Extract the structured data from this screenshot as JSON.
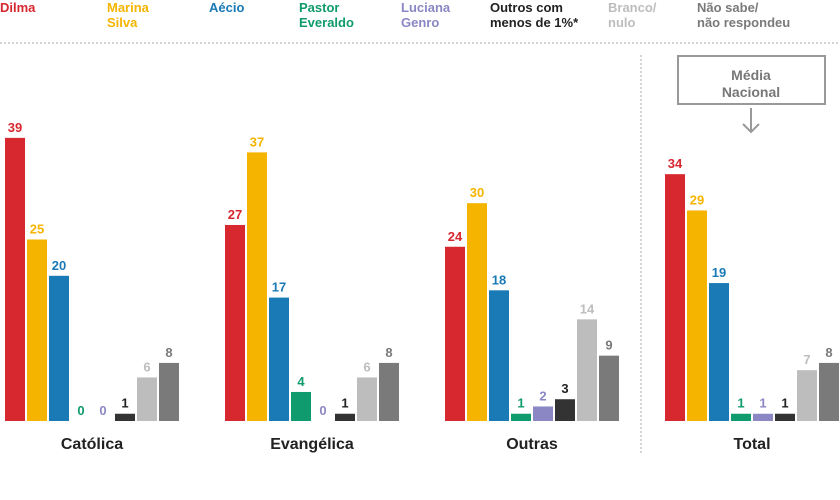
{
  "chart_data": {
    "type": "bar",
    "categories": [
      "Católica",
      "Evangélica",
      "Outras",
      "Total"
    ],
    "series": [
      {
        "name": "Dilma",
        "color": "#d7282f",
        "values": [
          39,
          27,
          24,
          34
        ]
      },
      {
        "name": "Marina\nSilva",
        "color": "#f5b400",
        "values": [
          25,
          37,
          30,
          29
        ]
      },
      {
        "name": "Aécio",
        "color": "#1a7ab5",
        "values": [
          20,
          17,
          18,
          19
        ]
      },
      {
        "name": "Pastor\nEveraldo",
        "color": "#0f9b6e",
        "values": [
          0,
          4,
          1,
          1
        ]
      },
      {
        "name": "Luciana\nGenro",
        "color": "#8b87c4",
        "values": [
          0,
          0,
          2,
          1
        ]
      },
      {
        "name": "Outros com\nmenos de 1%*",
        "color": "#333333",
        "values": [
          1,
          1,
          3,
          1
        ]
      },
      {
        "name": "Branco/\nnulo",
        "color": "#bdbdbd",
        "values": [
          6,
          6,
          14,
          7
        ]
      },
      {
        "name": "Não sabe/\nnão respondeu",
        "color": "#7a7a7a",
        "values": [
          8,
          8,
          9,
          8
        ]
      }
    ],
    "annotation": "Média\nNacional"
  }
}
